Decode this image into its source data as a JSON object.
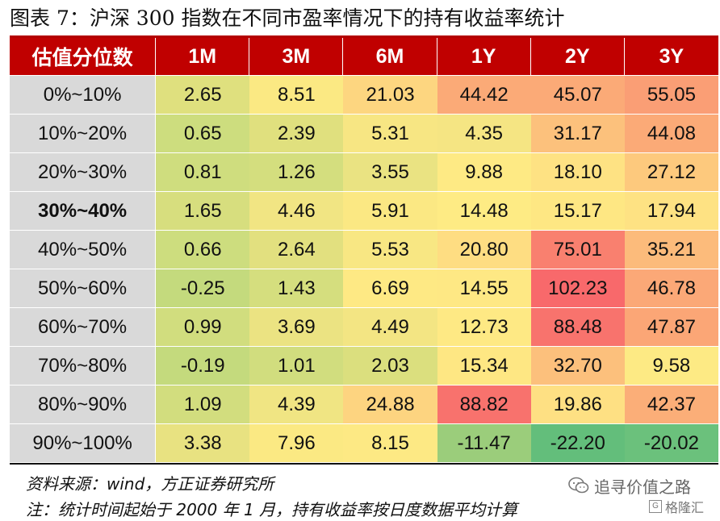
{
  "title": "图表 7：沪深 300 指数在不同市盈率情况下的持有收益率统计",
  "table": {
    "corner": "估值分位数",
    "columns": [
      "1M",
      "3M",
      "6M",
      "1Y",
      "2Y",
      "3Y"
    ],
    "rows": [
      {
        "label": "0%~10%",
        "bold": false,
        "values": [
          "2.65",
          "8.51",
          "21.03",
          "44.42",
          "45.07",
          "55.05"
        ],
        "colors": [
          "#dfe07e",
          "#fbe983",
          "#fdd680",
          "#fbaa77",
          "#fbaa77",
          "#fa9e75"
        ]
      },
      {
        "label": "10%~20%",
        "bold": false,
        "values": [
          "0.65",
          "2.39",
          "5.31",
          "4.35",
          "31.17",
          "44.08"
        ],
        "colors": [
          "#cddd7e",
          "#e0e07e",
          "#f7e683",
          "#f5e583",
          "#fcc17c",
          "#fbaa77"
        ]
      },
      {
        "label": "20%~30%",
        "bold": false,
        "values": [
          "0.81",
          "1.26",
          "3.55",
          "9.88",
          "18.10",
          "27.12"
        ],
        "colors": [
          "#cfdd7e",
          "#d4de7e",
          "#eae382",
          "#feea84",
          "#fee283",
          "#fdc97d"
        ]
      },
      {
        "label": "30%~40%",
        "bold": true,
        "values": [
          "1.65",
          "4.46",
          "5.91",
          "14.48",
          "15.17",
          "17.94"
        ],
        "colors": [
          "#d7de7e",
          "#f1e583",
          "#fbe883",
          "#feeb84",
          "#fee783",
          "#fee283"
        ]
      },
      {
        "label": "40%~50%",
        "bold": false,
        "values": [
          "0.66",
          "2.64",
          "5.53",
          "20.80",
          "75.01",
          "35.21"
        ],
        "colors": [
          "#cddd7e",
          "#e2e07f",
          "#f8e783",
          "#fedd82",
          "#f9806f",
          "#fcbb7b"
        ]
      },
      {
        "label": "50%~60%",
        "bold": false,
        "values": [
          "-0.25",
          "1.43",
          "6.69",
          "14.55",
          "102.23",
          "46.78"
        ],
        "colors": [
          "#c4da7d",
          "#d5de7e",
          "#fee984",
          "#fee884",
          "#f8696b",
          "#fba877"
        ]
      },
      {
        "label": "60%~70%",
        "bold": false,
        "values": [
          "0.99",
          "3.69",
          "4.49",
          "12.73",
          "88.48",
          "47.87"
        ],
        "colors": [
          "#d1dd7e",
          "#ebe382",
          "#f3e583",
          "#fee984",
          "#f8736d",
          "#fba676"
        ]
      },
      {
        "label": "70%~80%",
        "bold": false,
        "values": [
          "-0.19",
          "1.01",
          "2.03",
          "15.34",
          "32.70",
          "9.58"
        ],
        "colors": [
          "#c4da7d",
          "#d1dd7e",
          "#dbdf7e",
          "#fee783",
          "#fcc07c",
          "#fdea84"
        ]
      },
      {
        "label": "80%~90%",
        "bold": false,
        "values": [
          "1.09",
          "4.39",
          "24.88",
          "88.82",
          "19.86",
          "42.37"
        ],
        "colors": [
          "#d2dd7e",
          "#f0e583",
          "#fdd480",
          "#f8726d",
          "#fee083",
          "#fbae78"
        ]
      },
      {
        "label": "90%~100%",
        "bold": false,
        "values": [
          "3.38",
          "7.96",
          "8.15",
          "-11.47",
          "-22.20",
          "-20.02"
        ],
        "colors": [
          "#e8e281",
          "#fbe983",
          "#fde984",
          "#9bcd7b",
          "#63be7b",
          "#6bc17c"
        ]
      }
    ]
  },
  "source": "资料来源：wind，方正证券研究所",
  "footnote": "注：统计时间起始于 2000 年 1 月，持有收益率按日度数据平均计算",
  "watermark": {
    "line1": "追寻价值之路",
    "line2": "格隆汇",
    "icon1": "wechat-icon",
    "icon2": "gelonghui-logo-icon"
  }
}
